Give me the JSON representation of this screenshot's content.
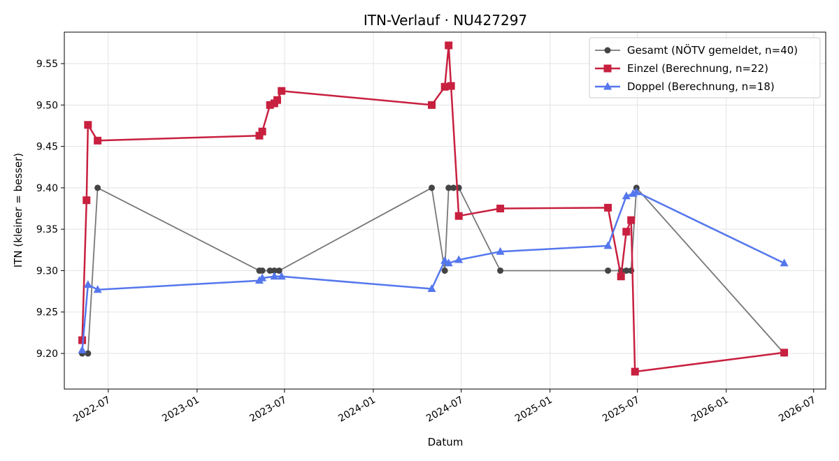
{
  "chart_data": {
    "type": "line",
    "title": "ITN-Verlauf · NU427297",
    "xlabel": "Datum",
    "ylabel": "ITN  (kleiner = besser)",
    "x_type": "date",
    "xlim": [
      "2022-04-01",
      "2026-07-26"
    ],
    "ylim": [
      9.157,
      9.588
    ],
    "x_ticks": [
      "2022-07-01",
      "2023-01-01",
      "2023-07-01",
      "2024-01-01",
      "2024-07-01",
      "2025-01-01",
      "2025-07-01",
      "2026-01-01",
      "2026-07-01"
    ],
    "x_tick_labels": [
      "2022-07",
      "2023-01",
      "2023-07",
      "2024-01",
      "2024-07",
      "2025-01",
      "2025-07",
      "2026-01",
      "2026-07"
    ],
    "y_ticks": [
      9.2,
      9.25,
      9.3,
      9.35,
      9.4,
      9.45,
      9.5,
      9.55
    ],
    "y_tick_labels": [
      "9.20",
      "9.25",
      "9.30",
      "9.35",
      "9.40",
      "9.45",
      "9.50",
      "9.55"
    ],
    "grid": true,
    "legend_position": "top-right",
    "series": [
      {
        "name": "Gesamt (NÖTV gemeldet, n=40)",
        "color": "#777777",
        "marker_color": "#444444",
        "marker": "circle",
        "points": [
          {
            "x": "2022-05-08",
            "y": 9.2
          },
          {
            "x": "2022-05-20",
            "y": 9.2
          },
          {
            "x": "2022-06-09",
            "y": 9.4
          },
          {
            "x": "2023-05-10",
            "y": 9.3
          },
          {
            "x": "2023-05-16",
            "y": 9.3
          },
          {
            "x": "2023-06-01",
            "y": 9.3
          },
          {
            "x": "2023-06-10",
            "y": 9.3
          },
          {
            "x": "2023-06-20",
            "y": 9.3
          },
          {
            "x": "2024-05-01",
            "y": 9.4
          },
          {
            "x": "2024-05-28",
            "y": 9.3
          },
          {
            "x": "2024-06-05",
            "y": 9.4
          },
          {
            "x": "2024-06-15",
            "y": 9.4
          },
          {
            "x": "2024-06-26",
            "y": 9.4
          },
          {
            "x": "2024-09-20",
            "y": 9.3
          },
          {
            "x": "2025-05-01",
            "y": 9.3
          },
          {
            "x": "2025-05-28",
            "y": 9.3
          },
          {
            "x": "2025-06-08",
            "y": 9.3
          },
          {
            "x": "2025-06-18",
            "y": 9.3
          },
          {
            "x": "2025-06-29",
            "y": 9.4
          },
          {
            "x": "2026-05-01",
            "y": 9.2
          }
        ]
      },
      {
        "name": "Einzel (Berechnung, n=22)",
        "color": "#c8203f",
        "marker": "square",
        "points": [
          {
            "x": "2022-05-08",
            "y": 9.216
          },
          {
            "x": "2022-05-17",
            "y": 9.385
          },
          {
            "x": "2022-05-20",
            "y": 9.476
          },
          {
            "x": "2022-06-09",
            "y": 9.457
          },
          {
            "x": "2023-05-10",
            "y": 9.463
          },
          {
            "x": "2023-05-16",
            "y": 9.468
          },
          {
            "x": "2023-06-01",
            "y": 9.5
          },
          {
            "x": "2023-06-10",
            "y": 9.502
          },
          {
            "x": "2023-06-16",
            "y": 9.506
          },
          {
            "x": "2023-06-25",
            "y": 9.517
          },
          {
            "x": "2024-05-01",
            "y": 9.5
          },
          {
            "x": "2024-05-28",
            "y": 9.522
          },
          {
            "x": "2024-06-05",
            "y": 9.572
          },
          {
            "x": "2024-06-10",
            "y": 9.523
          },
          {
            "x": "2024-06-26",
            "y": 9.366
          },
          {
            "x": "2024-09-20",
            "y": 9.375
          },
          {
            "x": "2025-05-01",
            "y": 9.376
          },
          {
            "x": "2025-05-28",
            "y": 9.293
          },
          {
            "x": "2025-06-08",
            "y": 9.347
          },
          {
            "x": "2025-06-18",
            "y": 9.361
          },
          {
            "x": "2025-06-26",
            "y": 9.178
          },
          {
            "x": "2026-05-01",
            "y": 9.201
          }
        ]
      },
      {
        "name": "Doppel (Berechnung, n=18)",
        "color": "#5577ee",
        "marker": "triangle",
        "points": [
          {
            "x": "2022-05-08",
            "y": 9.204
          },
          {
            "x": "2022-05-20",
            "y": 9.283
          },
          {
            "x": "2022-06-09",
            "y": 9.277
          },
          {
            "x": "2023-05-10",
            "y": 9.288
          },
          {
            "x": "2023-05-16",
            "y": 9.291
          },
          {
            "x": "2023-06-10",
            "y": 9.293
          },
          {
            "x": "2023-06-25",
            "y": 9.293
          },
          {
            "x": "2024-05-01",
            "y": 9.278
          },
          {
            "x": "2024-05-28",
            "y": 9.312
          },
          {
            "x": "2024-06-05",
            "y": 9.309
          },
          {
            "x": "2024-06-26",
            "y": 9.313
          },
          {
            "x": "2024-09-20",
            "y": 9.323
          },
          {
            "x": "2025-05-01",
            "y": 9.33
          },
          {
            "x": "2025-06-08",
            "y": 9.39
          },
          {
            "x": "2025-06-22",
            "y": 9.393
          },
          {
            "x": "2025-06-29",
            "y": 9.395
          },
          {
            "x": "2026-05-01",
            "y": 9.309
          }
        ]
      }
    ]
  }
}
